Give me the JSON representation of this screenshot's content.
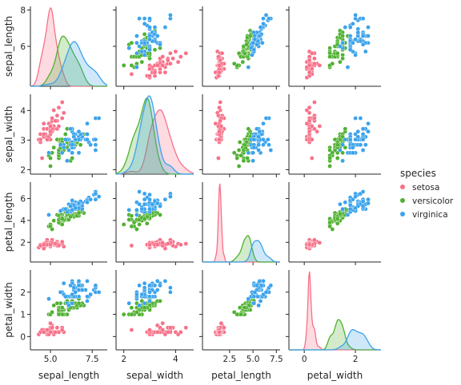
{
  "chart_data": {
    "type": "scatter",
    "variables": [
      "sepal_length",
      "sepal_width",
      "petal_length",
      "petal_width"
    ],
    "diagonal": "kde",
    "grid": false,
    "legend": {
      "title": "species",
      "placement": "right-center",
      "entries": [
        "setosa",
        "versicolor",
        "virginica"
      ]
    },
    "colors": {
      "setosa": "#f77189",
      "versicolor": "#50b131",
      "virginica": "#3ba3ec"
    },
    "ticks": {
      "sepal_length": [
        5.0,
        7.5
      ],
      "sepal_width": [
        2,
        3,
        4
      ],
      "petal_length": [
        2.5,
        5.0,
        7.5
      ],
      "petal_width": [
        0,
        1,
        2
      ]
    },
    "tick_labels": {
      "x": {
        "sepal_length": [
          "5.0",
          "7.5"
        ],
        "sepal_width": [
          "2",
          "4"
        ],
        "petal_length": [
          "2.5",
          "5.0",
          "7.5"
        ],
        "petal_width": [
          "0",
          "2"
        ]
      },
      "y": {
        "sepal_length": [
          "6",
          "8"
        ],
        "sepal_width": [
          "2",
          "3",
          "4"
        ],
        "petal_length": [
          "2",
          "4",
          "6"
        ],
        "petal_width": [
          "0",
          "1",
          "2"
        ]
      }
    },
    "ranges": {
      "sepal_length": [
        3.8,
        8.4
      ],
      "sepal_width": [
        1.7,
        4.7
      ],
      "petal_length": [
        -0.4,
        7.9
      ],
      "petal_width": [
        -0.6,
        3.0
      ]
    },
    "row_label_ranges": {
      "sepal_length": [
        3.8,
        8.2
      ],
      "sepal_width": [
        1.85,
        4.55
      ],
      "petal_length": [
        0.2,
        7.5
      ],
      "petal_width": [
        -0.6,
        3.0
      ]
    },
    "series": [
      {
        "name": "setosa",
        "columns": [
          "sepal_length",
          "sepal_width",
          "petal_length",
          "petal_width"
        ],
        "values": [
          [
            5.1,
            3.5,
            1.4,
            0.2
          ],
          [
            4.9,
            3.0,
            1.4,
            0.2
          ],
          [
            4.7,
            3.2,
            1.3,
            0.2
          ],
          [
            4.6,
            3.1,
            1.5,
            0.2
          ],
          [
            5.0,
            3.6,
            1.4,
            0.2
          ],
          [
            5.4,
            3.9,
            1.7,
            0.4
          ],
          [
            4.6,
            3.4,
            1.4,
            0.3
          ],
          [
            5.0,
            3.4,
            1.5,
            0.2
          ],
          [
            4.4,
            2.9,
            1.4,
            0.2
          ],
          [
            4.9,
            3.1,
            1.5,
            0.1
          ],
          [
            5.4,
            3.7,
            1.5,
            0.2
          ],
          [
            4.8,
            3.4,
            1.6,
            0.2
          ],
          [
            4.8,
            3.0,
            1.4,
            0.1
          ],
          [
            4.3,
            3.0,
            1.1,
            0.1
          ],
          [
            5.8,
            4.0,
            1.2,
            0.2
          ],
          [
            5.7,
            4.4,
            1.5,
            0.4
          ],
          [
            5.4,
            3.9,
            1.3,
            0.4
          ],
          [
            5.1,
            3.5,
            1.4,
            0.3
          ],
          [
            5.7,
            3.8,
            1.7,
            0.3
          ],
          [
            5.1,
            3.8,
            1.5,
            0.3
          ],
          [
            5.4,
            3.4,
            1.7,
            0.2
          ],
          [
            5.1,
            3.7,
            1.5,
            0.4
          ],
          [
            4.6,
            3.6,
            1.0,
            0.2
          ],
          [
            5.1,
            3.3,
            1.7,
            0.5
          ],
          [
            4.8,
            3.4,
            1.9,
            0.2
          ],
          [
            5.0,
            3.0,
            1.6,
            0.2
          ],
          [
            5.0,
            3.4,
            1.6,
            0.4
          ],
          [
            5.2,
            3.5,
            1.5,
            0.2
          ],
          [
            5.2,
            3.4,
            1.4,
            0.2
          ],
          [
            4.7,
            3.2,
            1.6,
            0.2
          ],
          [
            4.8,
            3.1,
            1.6,
            0.2
          ],
          [
            5.4,
            3.4,
            1.5,
            0.4
          ],
          [
            5.2,
            4.1,
            1.5,
            0.1
          ],
          [
            5.5,
            4.2,
            1.4,
            0.2
          ],
          [
            4.9,
            3.1,
            1.5,
            0.2
          ],
          [
            5.0,
            3.2,
            1.2,
            0.2
          ],
          [
            5.5,
            3.5,
            1.3,
            0.2
          ],
          [
            4.9,
            3.6,
            1.4,
            0.1
          ],
          [
            4.4,
            3.0,
            1.3,
            0.2
          ],
          [
            5.1,
            3.4,
            1.5,
            0.2
          ],
          [
            5.0,
            3.5,
            1.3,
            0.3
          ],
          [
            4.5,
            2.3,
            1.3,
            0.3
          ],
          [
            4.4,
            3.2,
            1.3,
            0.2
          ],
          [
            5.0,
            3.5,
            1.6,
            0.6
          ],
          [
            5.1,
            3.8,
            1.9,
            0.4
          ],
          [
            4.8,
            3.0,
            1.4,
            0.3
          ],
          [
            5.1,
            3.8,
            1.6,
            0.2
          ],
          [
            4.6,
            3.2,
            1.4,
            0.2
          ],
          [
            5.3,
            3.7,
            1.5,
            0.2
          ],
          [
            5.0,
            3.3,
            1.4,
            0.2
          ]
        ]
      },
      {
        "name": "versicolor",
        "columns": [
          "sepal_length",
          "sepal_width",
          "petal_length",
          "petal_width"
        ],
        "values": [
          [
            7.0,
            3.2,
            4.7,
            1.4
          ],
          [
            6.4,
            3.2,
            4.5,
            1.5
          ],
          [
            6.9,
            3.1,
            4.9,
            1.5
          ],
          [
            5.5,
            2.3,
            4.0,
            1.3
          ],
          [
            6.5,
            2.8,
            4.6,
            1.5
          ],
          [
            5.7,
            2.8,
            4.5,
            1.3
          ],
          [
            6.3,
            3.3,
            4.7,
            1.6
          ],
          [
            4.9,
            2.4,
            3.3,
            1.0
          ],
          [
            6.6,
            2.9,
            4.6,
            1.3
          ],
          [
            5.2,
            2.7,
            3.9,
            1.4
          ],
          [
            5.0,
            2.0,
            3.5,
            1.0
          ],
          [
            5.9,
            3.0,
            4.2,
            1.5
          ],
          [
            6.0,
            2.2,
            4.0,
            1.0
          ],
          [
            6.1,
            2.9,
            4.7,
            1.4
          ],
          [
            5.6,
            2.9,
            3.6,
            1.3
          ],
          [
            6.7,
            3.1,
            4.4,
            1.4
          ],
          [
            5.6,
            3.0,
            4.5,
            1.5
          ],
          [
            5.8,
            2.7,
            4.1,
            1.0
          ],
          [
            6.2,
            2.2,
            4.5,
            1.5
          ],
          [
            5.6,
            2.5,
            3.9,
            1.1
          ],
          [
            5.9,
            3.2,
            4.8,
            1.8
          ],
          [
            6.1,
            2.8,
            4.0,
            1.3
          ],
          [
            6.3,
            2.5,
            4.9,
            1.5
          ],
          [
            6.1,
            2.8,
            4.7,
            1.2
          ],
          [
            6.4,
            2.9,
            4.3,
            1.3
          ],
          [
            6.6,
            3.0,
            4.4,
            1.4
          ],
          [
            6.8,
            2.8,
            4.8,
            1.4
          ],
          [
            6.7,
            3.0,
            5.0,
            1.7
          ],
          [
            6.0,
            2.9,
            4.5,
            1.5
          ],
          [
            5.7,
            2.6,
            3.5,
            1.0
          ],
          [
            5.5,
            2.4,
            3.8,
            1.1
          ],
          [
            5.5,
            2.4,
            3.7,
            1.0
          ],
          [
            5.8,
            2.7,
            3.9,
            1.2
          ],
          [
            6.0,
            2.7,
            5.1,
            1.6
          ],
          [
            5.4,
            3.0,
            4.5,
            1.5
          ],
          [
            6.0,
            3.4,
            4.5,
            1.6
          ],
          [
            6.7,
            3.1,
            4.7,
            1.5
          ],
          [
            6.3,
            2.3,
            4.4,
            1.3
          ],
          [
            5.6,
            3.0,
            4.1,
            1.3
          ],
          [
            5.5,
            2.5,
            4.0,
            1.3
          ],
          [
            5.5,
            2.6,
            4.4,
            1.2
          ],
          [
            6.1,
            3.0,
            4.6,
            1.4
          ],
          [
            5.8,
            2.6,
            4.0,
            1.2
          ],
          [
            5.0,
            2.3,
            3.3,
            1.0
          ],
          [
            5.6,
            2.7,
            4.2,
            1.3
          ],
          [
            5.7,
            3.0,
            4.2,
            1.2
          ],
          [
            5.7,
            2.9,
            4.2,
            1.3
          ],
          [
            6.2,
            2.9,
            4.3,
            1.3
          ],
          [
            5.1,
            2.5,
            3.0,
            1.1
          ],
          [
            5.7,
            2.8,
            4.1,
            1.3
          ]
        ]
      },
      {
        "name": "virginica",
        "columns": [
          "sepal_length",
          "sepal_width",
          "petal_length",
          "petal_width"
        ],
        "values": [
          [
            6.3,
            3.3,
            6.0,
            2.5
          ],
          [
            5.8,
            2.7,
            5.1,
            1.9
          ],
          [
            7.1,
            3.0,
            5.9,
            2.1
          ],
          [
            6.3,
            2.9,
            5.6,
            1.8
          ],
          [
            6.5,
            3.0,
            5.8,
            2.2
          ],
          [
            7.6,
            3.0,
            6.6,
            2.1
          ],
          [
            4.9,
            2.5,
            4.5,
            1.7
          ],
          [
            7.3,
            2.9,
            6.3,
            1.8
          ],
          [
            6.7,
            2.5,
            5.8,
            1.8
          ],
          [
            7.2,
            3.6,
            6.1,
            2.5
          ],
          [
            6.5,
            3.2,
            5.1,
            2.0
          ],
          [
            6.4,
            2.7,
            5.3,
            1.9
          ],
          [
            6.8,
            3.0,
            5.5,
            2.1
          ],
          [
            5.7,
            2.5,
            5.0,
            2.0
          ],
          [
            5.8,
            2.8,
            5.1,
            2.4
          ],
          [
            6.4,
            3.2,
            5.3,
            2.3
          ],
          [
            6.5,
            3.0,
            5.5,
            1.8
          ],
          [
            7.7,
            3.8,
            6.7,
            2.2
          ],
          [
            7.7,
            2.6,
            6.9,
            2.3
          ],
          [
            6.0,
            2.2,
            5.0,
            1.5
          ],
          [
            6.9,
            3.2,
            5.7,
            2.3
          ],
          [
            5.6,
            2.8,
            4.9,
            2.0
          ],
          [
            7.7,
            2.8,
            6.7,
            2.0
          ],
          [
            6.3,
            2.7,
            4.9,
            1.8
          ],
          [
            6.7,
            3.3,
            5.7,
            2.1
          ],
          [
            7.2,
            3.2,
            6.0,
            1.8
          ],
          [
            6.2,
            2.8,
            4.8,
            1.8
          ],
          [
            6.1,
            3.0,
            4.9,
            1.8
          ],
          [
            6.4,
            2.8,
            5.6,
            2.1
          ],
          [
            7.2,
            3.0,
            5.8,
            1.6
          ],
          [
            7.4,
            2.8,
            6.1,
            1.9
          ],
          [
            7.9,
            3.8,
            6.4,
            2.0
          ],
          [
            6.4,
            2.8,
            5.6,
            2.2
          ],
          [
            6.3,
            2.8,
            5.1,
            1.5
          ],
          [
            6.1,
            2.6,
            5.6,
            1.4
          ],
          [
            7.7,
            3.0,
            6.1,
            2.3
          ],
          [
            6.3,
            3.4,
            5.6,
            2.4
          ],
          [
            6.4,
            3.1,
            5.5,
            1.8
          ],
          [
            6.0,
            3.0,
            4.8,
            1.8
          ],
          [
            6.9,
            3.1,
            5.4,
            2.1
          ],
          [
            6.7,
            3.1,
            5.6,
            2.4
          ],
          [
            6.9,
            3.1,
            5.1,
            2.3
          ],
          [
            5.8,
            2.7,
            5.1,
            1.9
          ],
          [
            6.8,
            3.2,
            5.9,
            2.3
          ],
          [
            6.7,
            3.3,
            5.7,
            2.5
          ],
          [
            6.7,
            3.0,
            5.2,
            2.3
          ],
          [
            6.3,
            2.5,
            5.0,
            1.9
          ],
          [
            6.5,
            3.0,
            5.2,
            2.0
          ],
          [
            6.2,
            3.4,
            5.4,
            2.3
          ],
          [
            5.9,
            3.0,
            5.1,
            1.8
          ]
        ]
      }
    ]
  }
}
